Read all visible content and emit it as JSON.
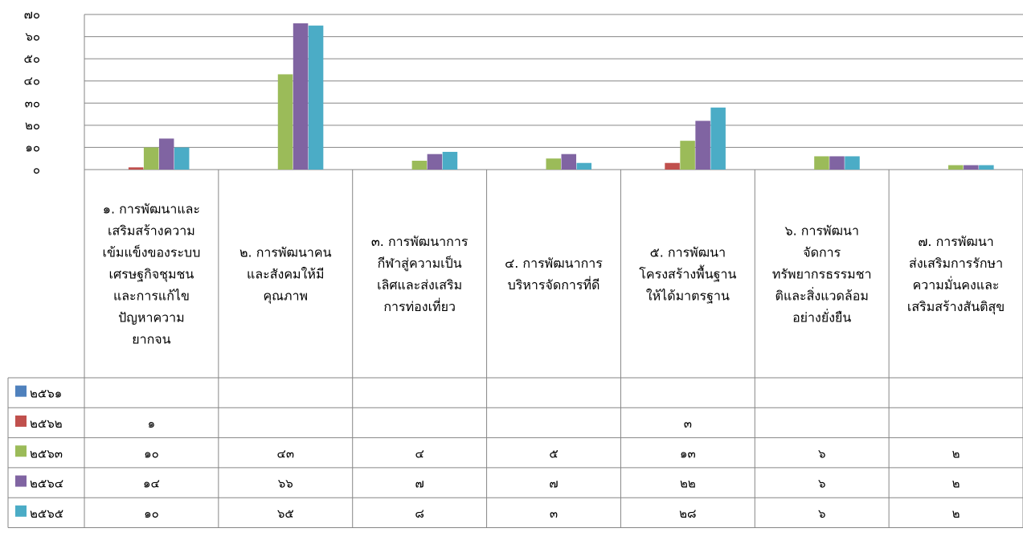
{
  "chart_data": {
    "type": "bar",
    "ylim": [
      0,
      70
    ],
    "yticks": [
      "๐",
      "๑๐",
      "๒๐",
      "๓๐",
      "๔๐",
      "๕๐",
      "๖๐",
      "๗๐"
    ],
    "grid": true,
    "categories": [
      [
        "๑. การพัฒนาและ",
        "เสริมสร้างความ",
        "เข้มแข็งของระบบ",
        "เศรษฐกิจชุมชน",
        "และการแก้ไข",
        "ปัญหาความ",
        "ยากจน"
      ],
      [
        "๒. การพัฒนาคน",
        "และสังคมให้มี",
        "คุณภาพ"
      ],
      [
        "๓. การพัฒนาการ",
        "กีฬาสู่ความเป็น",
        "เลิศและส่งเสริม",
        "การท่องเที่ยว"
      ],
      [
        "๔. การพัฒนาการ",
        "บริหารจัดการที่ดี"
      ],
      [
        "๕. การพัฒนา",
        "โครงสร้างพื้นฐาน",
        "ให้ได้มาตรฐาน"
      ],
      [
        "๖. การพัฒนา",
        "จัดการ",
        "ทรัพยากรธรรมชา",
        "ติและสิ่งแวดล้อม",
        "อย่างยั่งยืน"
      ],
      [
        "๗. การพัฒนา",
        "ส่งเสริมการรักษา",
        "ความมั่นคงและ",
        "เสริมสร้างสันติสุข"
      ]
    ],
    "series": [
      {
        "name": "๒๕๖๑",
        "color": "#4f81bd",
        "values": [
          null,
          null,
          null,
          null,
          null,
          null,
          null
        ],
        "labels": [
          "",
          "",
          "",
          "",
          "",
          "",
          ""
        ]
      },
      {
        "name": "๒๕๖๒",
        "color": "#c0504d",
        "values": [
          1,
          null,
          null,
          null,
          3,
          null,
          null
        ],
        "labels": [
          "๑",
          "",
          "",
          "",
          "๓",
          "",
          ""
        ]
      },
      {
        "name": "๒๕๖๓",
        "color": "#9bbb59",
        "values": [
          10,
          43,
          4,
          5,
          13,
          6,
          2
        ],
        "labels": [
          "๑๐",
          "๔๓",
          "๔",
          "๕",
          "๑๓",
          "๖",
          "๒"
        ]
      },
      {
        "name": "๒๕๖๔",
        "color": "#8064a2",
        "values": [
          14,
          66,
          7,
          7,
          22,
          6,
          2
        ],
        "labels": [
          "๑๔",
          "๖๖",
          "๗",
          "๗",
          "๒๒",
          "๖",
          "๒"
        ]
      },
      {
        "name": "๒๕๖๕",
        "color": "#4bacc6",
        "values": [
          10,
          65,
          8,
          3,
          28,
          6,
          2
        ],
        "labels": [
          "๑๐",
          "๖๕",
          "๘",
          "๓",
          "๒๘",
          "๖",
          "๒"
        ]
      }
    ]
  }
}
